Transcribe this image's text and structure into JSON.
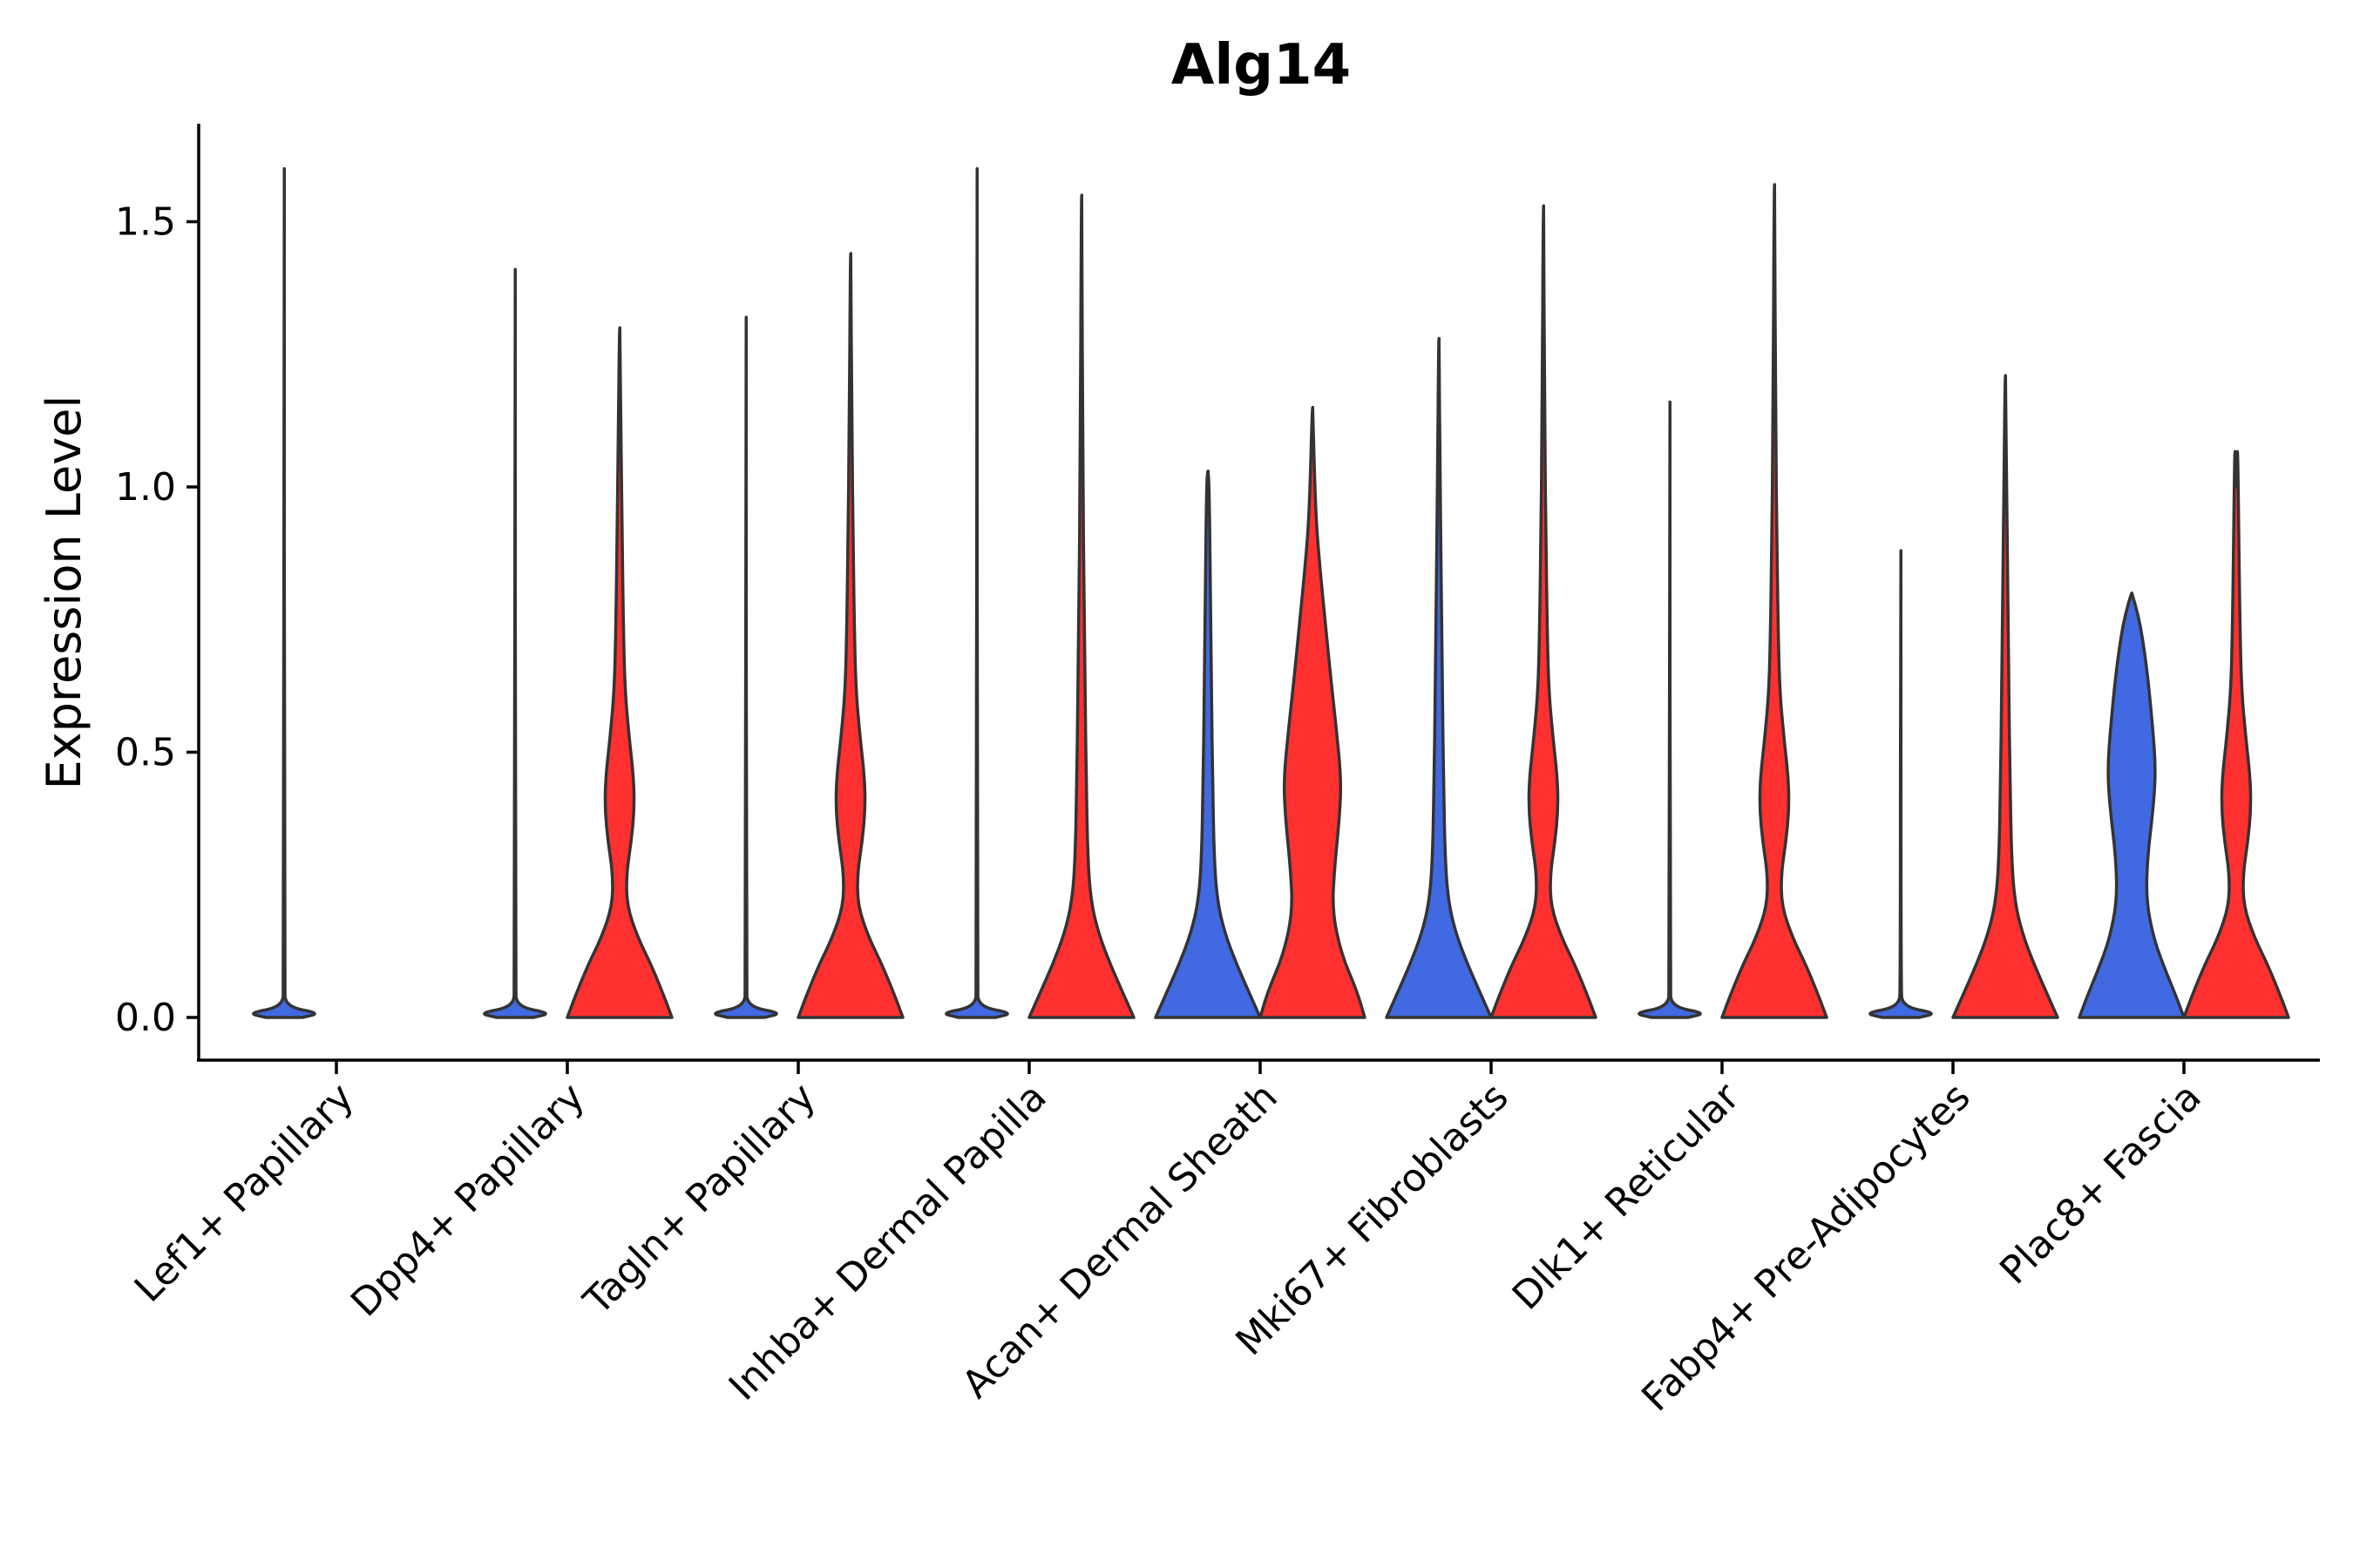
{
  "chart_data": {
    "type": "violin",
    "title": "Alg14",
    "xlabel": "",
    "ylabel": "Expression Level",
    "ylim": [
      -0.08,
      1.68
    ],
    "yticks": [
      0.0,
      0.5,
      1.0,
      1.5
    ],
    "ytick_labels": [
      "0.0",
      "0.5",
      "1.0",
      "1.5"
    ],
    "grid": false,
    "legend": "none",
    "categories": [
      "Lef1+ Papillary",
      "Dpp4+ Papillary",
      "Tagln+ Papillary",
      "Inhba+ Dermal Papilla",
      "Acan+ Dermal Sheath",
      "Mki67+ Fibroblasts",
      "Dlk1+ Reticular",
      "Fabp4+ Pre-Adipocytes",
      "Plac8+ Fascia"
    ],
    "series": [
      {
        "name": "group 1",
        "color": "#4169E1",
        "max_values": [
          1.6,
          1.41,
          1.32,
          1.6,
          1.03,
          1.28,
          1.16,
          0.88,
          0.8
        ],
        "shape": [
          "flat",
          "flat",
          "flat",
          "flat",
          "zero_heavy",
          "zero_heavy",
          "flat",
          "flat",
          "bimodal_mid"
        ]
      },
      {
        "name": "group 2",
        "color": "#FF3030",
        "max_values": [
          null,
          1.3,
          1.44,
          1.55,
          1.15,
          1.53,
          1.57,
          1.21,
          1.0
        ],
        "shape": [
          null,
          "bimodal",
          "bimodal",
          "zero_heavy",
          "broad",
          "bimodal",
          "bimodal",
          "zero_heavy",
          "bimodal"
        ]
      }
    ]
  }
}
